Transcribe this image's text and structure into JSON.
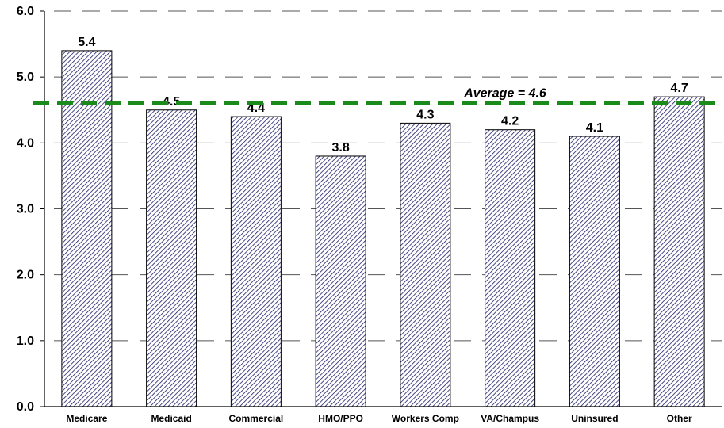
{
  "chart_data": {
    "type": "bar",
    "categories": [
      "Medicare",
      "Medicaid",
      "Commercial",
      "HMO/PPO",
      "Workers Comp",
      "VA/Champus",
      "Uninsured",
      "Other"
    ],
    "values": [
      5.4,
      4.5,
      4.4,
      3.8,
      4.3,
      4.2,
      4.1,
      4.7
    ],
    "data_labels": [
      "5.4",
      "4.5",
      "4.4",
      "3.8",
      "4.3",
      "4.2",
      "4.1",
      "4.7"
    ],
    "ylim": [
      0,
      6
    ],
    "yticks": [
      "0.0",
      "1.0",
      "2.0",
      "3.0",
      "4.0",
      "5.0",
      "6.0"
    ],
    "grid": "horizontal dashed",
    "bar_fill": "diagonal hatch",
    "bar_color": "#1a1a66",
    "average": {
      "value": 4.6,
      "label": "Average = 4.6",
      "color": "#1a8a1a"
    }
  }
}
